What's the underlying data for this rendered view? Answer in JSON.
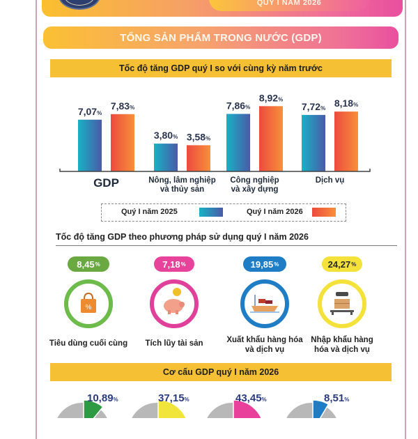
{
  "header": {
    "period_label": "QUÝ I NĂM 2026",
    "emblem_icon": "statistics-office-emblem"
  },
  "section_title": "TỔNG SẢN PHẨM TRONG NƯỚC (GDP)",
  "chart_data": [
    {
      "type": "bar",
      "title": "Tốc độ tăng GDP quý I so với cùng kỳ năm trước",
      "categories": [
        "GDP",
        "Nông, lâm nghiệp và thủy sản",
        "Công nghiệp và xây dựng",
        "Dịch vụ"
      ],
      "category_lines": [
        [
          "GDP"
        ],
        [
          "Nông, lâm nghiệp",
          "và thủy sản"
        ],
        [
          "Công nghiệp",
          "và xây dựng"
        ],
        [
          "Dịch vụ"
        ]
      ],
      "series": [
        {
          "name": "Quý I năm 2025",
          "values": [
            7.07,
            3.8,
            7.86,
            7.72
          ],
          "labels": [
            "7,07",
            "3,80",
            "7,86",
            "7,72"
          ],
          "color_from": "#17b2c4",
          "color_to": "#4b5aa8"
        },
        {
          "name": "Quý I năm 2026",
          "values": [
            7.83,
            3.58,
            8.92,
            8.18
          ],
          "labels": [
            "7,83",
            "3,58",
            "8,92",
            "8,18"
          ],
          "color_from": "#ec4a3e",
          "color_to": "#f8903a"
        }
      ],
      "unit_suffix": "%",
      "xlabel": "",
      "ylabel": "",
      "ylim": [
        0,
        10
      ],
      "grid": false,
      "legend": "bottom"
    },
    {
      "type": "table",
      "title": "Tốc độ tăng GDP theo phương pháp sử dụng quý I năm 2026",
      "items": [
        {
          "label": "Tiêu dùng cuối cùng",
          "value": "8,45",
          "color": "#6aa842",
          "ring": "#6dbb4a",
          "icon": "shopping-bag-icon"
        },
        {
          "label": "Tích lũy tài sản",
          "value": "7,18",
          "color": "#e8439a",
          "ring": "#e0409a",
          "icon": "piggy-bank-icon"
        },
        {
          "label": "Xuất khẩu hàng hóa và dịch vụ",
          "value": "19,85",
          "color": "#1f7dc6",
          "ring": "#1f7dc6",
          "icon": "cargo-ship-icon"
        },
        {
          "label": "Nhập khẩu hàng hóa và dịch vụ",
          "value": "24,27",
          "color": "#f4e23a",
          "ring": "#f4e23a",
          "icon": "cargo-scale-icon"
        }
      ],
      "unit_suffix": "%"
    },
    {
      "type": "pie",
      "title": "Cơ cấu GDP quý I năm 2026",
      "slices": [
        {
          "value": 10.89,
          "label": "10,89",
          "color": "#2e9a44"
        },
        {
          "value": 37.15,
          "label": "37,15",
          "color": "#f1e43a"
        },
        {
          "value": 43.45,
          "label": "43,45",
          "color": "#e8409b"
        },
        {
          "value": 8.51,
          "label": "8,51",
          "color": "#1f7dc6"
        }
      ],
      "remainder_color": "#b8b8b8",
      "unit_suffix": "%"
    }
  ]
}
